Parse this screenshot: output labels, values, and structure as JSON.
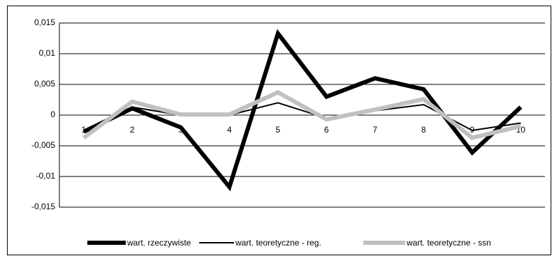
{
  "chart_data": {
    "type": "line",
    "categories": [
      "1",
      "2",
      "3",
      "4",
      "5",
      "6",
      "7",
      "8",
      "9",
      "10"
    ],
    "series": [
      {
        "name": "wart. rzeczywiste",
        "color": "#000000",
        "values": [
          -0.0027,
          0.0011,
          -0.002,
          -0.0117,
          0.0133,
          0.003,
          0.006,
          0.0042,
          -0.0061,
          0.0013
        ]
      },
      {
        "name": "wart. teoretyczne - reg.",
        "color": "#000000",
        "values": [
          -0.0025,
          0.0013,
          0,
          0,
          0.002,
          -0.0005,
          0.0007,
          0.0017,
          -0.0025,
          -0.0013
        ]
      },
      {
        "name": "wart. teoretyczne - ssn",
        "color": "#c0c0c0",
        "values": [
          -0.0037,
          0.0022,
          0.0001,
          0.0001,
          0.0037,
          -0.0007,
          0.0009,
          0.0026,
          -0.0037,
          -0.0018
        ]
      }
    ],
    "ylim": [
      -0.015,
      0.015
    ],
    "yticks": [
      {
        "value": -0.015,
        "label": "-0,015"
      },
      {
        "value": -0.01,
        "label": "-0,01"
      },
      {
        "value": -0.005,
        "label": "-0,005"
      },
      0,
      {
        "value": 0.005,
        "label": "0,005"
      },
      {
        "value": 0.01,
        "label": "0,01"
      },
      {
        "value": 0.015,
        "label": "0,015"
      }
    ],
    "grid": true,
    "legend": "bottom"
  }
}
